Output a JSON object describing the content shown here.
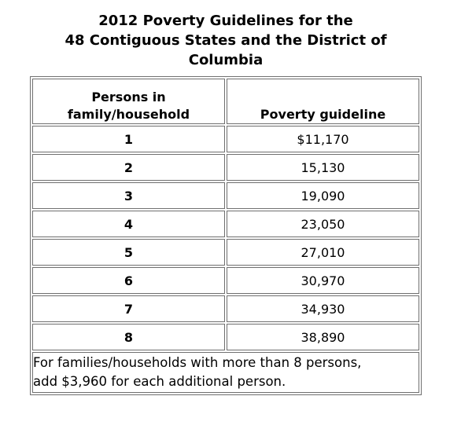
{
  "title": {
    "lines": [
      "2012 Poverty Guidelines for the",
      "48 Contiguous States and the District of",
      "Columbia"
    ]
  },
  "table": {
    "header_persons_lines": [
      "Persons in",
      "family/household"
    ],
    "header_guideline": "Poverty guideline",
    "rows": [
      [
        "1",
        "$11,170"
      ],
      [
        "2",
        "15,130"
      ],
      [
        "3",
        "19,090"
      ],
      [
        "4",
        "23,050"
      ],
      [
        "5",
        "27,010"
      ],
      [
        "6",
        "30,970"
      ],
      [
        "7",
        "34,930"
      ],
      [
        "8",
        "38,890"
      ]
    ],
    "footnote_lines": [
      "For families/households with more than 8 persons,",
      "add $3,960 for each additional person."
    ]
  },
  "colors": {
    "text": "#000000",
    "border": "#6f6f6f",
    "background": "#ffffff"
  }
}
